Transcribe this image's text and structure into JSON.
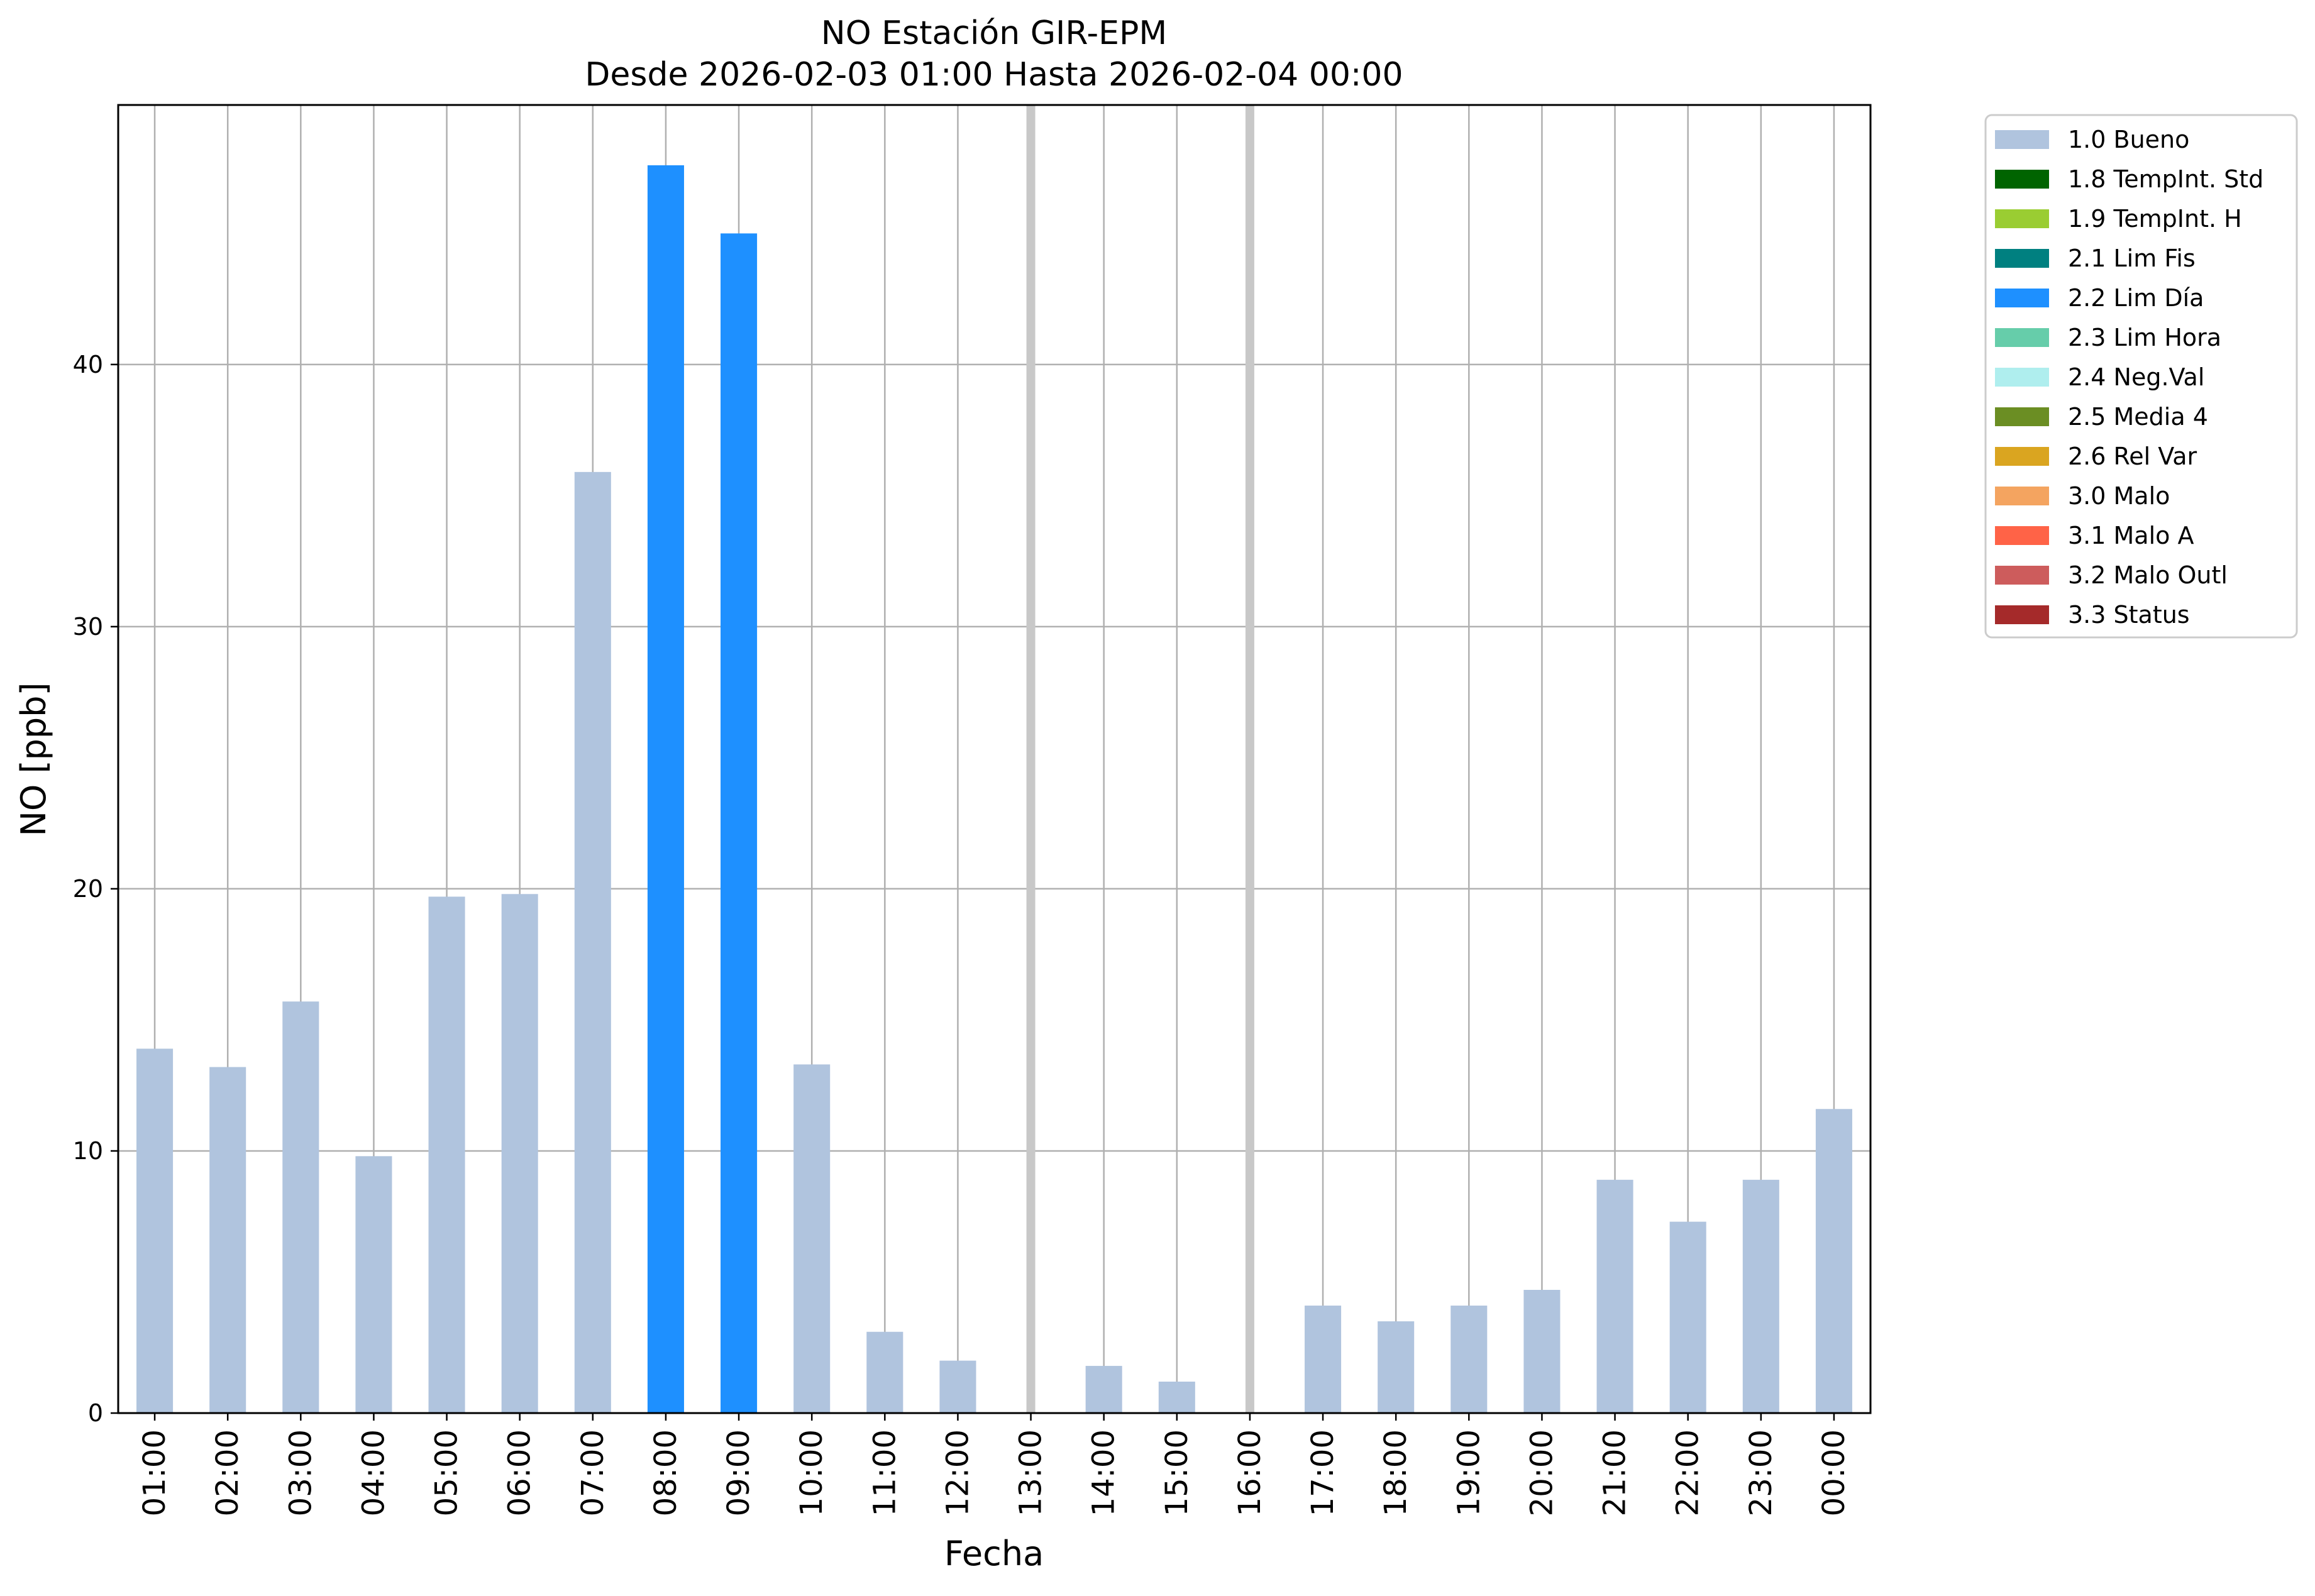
{
  "chart_data": {
    "type": "bar",
    "title": "NO Estación GIR-EPM",
    "subtitle": "Desde 2026-02-03 01:00 Hasta 2026-02-04 00:00",
    "xlabel": "Fecha",
    "ylabel": "NO [ppb]",
    "ylim": [
      0,
      49.9
    ],
    "yticks": [
      0,
      10,
      20,
      30,
      40
    ],
    "grid": true,
    "legend_position": "outside-top-right",
    "categories": [
      "01:00",
      "02:00",
      "03:00",
      "04:00",
      "05:00",
      "06:00",
      "07:00",
      "08:00",
      "09:00",
      "10:00",
      "11:00",
      "12:00",
      "13:00",
      "14:00",
      "15:00",
      "16:00",
      "17:00",
      "18:00",
      "19:00",
      "20:00",
      "21:00",
      "22:00",
      "23:00",
      "00:00"
    ],
    "values": [
      13.9,
      13.2,
      15.7,
      9.8,
      19.7,
      19.8,
      35.9,
      47.6,
      45.0,
      13.3,
      3.1,
      2.0,
      null,
      1.8,
      1.2,
      null,
      4.1,
      3.5,
      4.1,
      4.7,
      8.9,
      7.3,
      8.9,
      11.6
    ],
    "flags": [
      "1.0",
      "1.0",
      "1.0",
      "1.0",
      "1.0",
      "1.0",
      "1.0",
      "2.2",
      "2.2",
      "1.0",
      "1.0",
      "1.0",
      null,
      "1.0",
      "1.0",
      null,
      "1.0",
      "1.0",
      "1.0",
      "1.0",
      "1.0",
      "1.0",
      "1.0",
      "1.0"
    ],
    "missing_markers": [
      "13:00",
      "16:00"
    ],
    "legend": [
      {
        "code": "1.0",
        "label": "1.0 Bueno",
        "color": "#b0c4de"
      },
      {
        "code": "1.8",
        "label": "1.8 TempInt. Std",
        "color": "#006400"
      },
      {
        "code": "1.9",
        "label": "1.9 TempInt. H",
        "color": "#9acd32"
      },
      {
        "code": "2.1",
        "label": "2.1 Lim Fis",
        "color": "#008080"
      },
      {
        "code": "2.2",
        "label": "2.2 Lim Día",
        "color": "#1e90ff"
      },
      {
        "code": "2.3",
        "label": "2.3 Lim Hora",
        "color": "#66cdaa"
      },
      {
        "code": "2.4",
        "label": "2.4 Neg.Val",
        "color": "#afeeee"
      },
      {
        "code": "2.5",
        "label": "2.5 Media 4",
        "color": "#6b8e23"
      },
      {
        "code": "2.6",
        "label": "2.6 Rel Var",
        "color": "#daa520"
      },
      {
        "code": "3.0",
        "label": "3.0 Malo",
        "color": "#f4a460"
      },
      {
        "code": "3.1",
        "label": "3.1 Malo A",
        "color": "#ff6347"
      },
      {
        "code": "3.2",
        "label": "3.2 Malo Outl",
        "color": "#cd5c5c"
      },
      {
        "code": "3.3",
        "label": "3.3 Status",
        "color": "#a52a2a"
      }
    ],
    "colors": {
      "grid": "#b0b0b0",
      "missing_marker": "#c8c8c8",
      "axes": "#000000"
    }
  }
}
